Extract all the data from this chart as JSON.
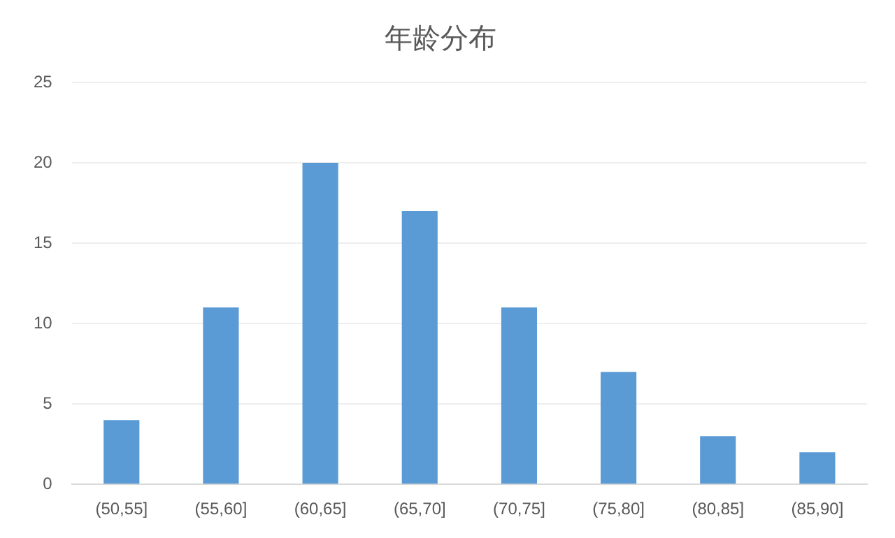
{
  "chart_data": {
    "type": "bar",
    "title": "年龄分布",
    "categories": [
      "(50,55]",
      "(55,60]",
      "(60,65]",
      "(65,70]",
      "(70,75]",
      "(75,80]",
      "(80,85]",
      "(85,90]"
    ],
    "values": [
      4,
      11,
      20,
      17,
      11,
      7,
      3,
      2
    ],
    "color": "#5b9bd5",
    "ylim": [
      0,
      25
    ],
    "yticks": [
      0,
      5,
      10,
      15,
      20,
      25
    ],
    "grid": "y"
  }
}
